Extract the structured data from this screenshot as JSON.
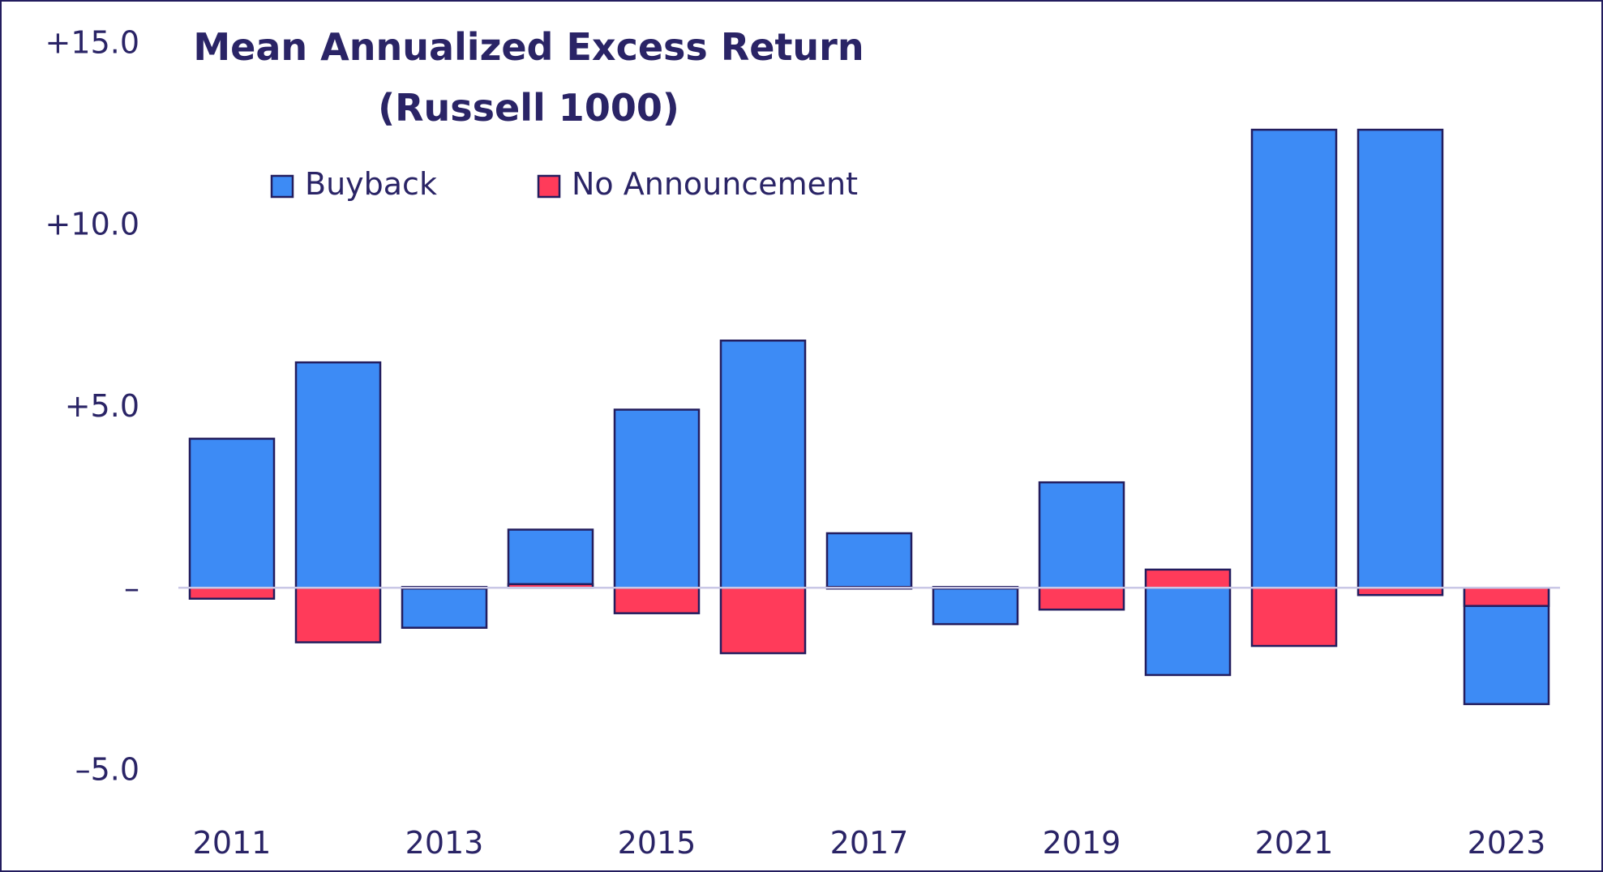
{
  "chart_data": {
    "type": "bar",
    "stacking": "overlapped-per-year",
    "title_line1": "Mean Annualized Excess Return",
    "title_line2": "(Russell 1000)",
    "xlabel": "",
    "ylabel": "",
    "ylim": [
      -5.5,
      15.5
    ],
    "y_ticks": [
      {
        "value": 15,
        "label": "+15.0"
      },
      {
        "value": 10,
        "label": "+10.0"
      },
      {
        "value": 5,
        "label": "+5.0"
      },
      {
        "value": 0,
        "label": "–"
      },
      {
        "value": -5,
        "label": "–5.0"
      }
    ],
    "categories": [
      "2011",
      "2012",
      "2013",
      "2014",
      "2015",
      "2016",
      "2017",
      "2018",
      "2019",
      "2020",
      "2021",
      "2022",
      "2023"
    ],
    "x_tick_labels": [
      "2011",
      "",
      "2013",
      "",
      "2015",
      "",
      "2017",
      "",
      "2019",
      "",
      "2021",
      "",
      "2023"
    ],
    "series": [
      {
        "name": "Buyback",
        "color": "#3d8bf5",
        "values": [
          4.1,
          6.2,
          -1.1,
          1.6,
          4.9,
          6.8,
          1.5,
          -1.0,
          2.9,
          -2.4,
          12.6,
          12.6,
          -3.2
        ]
      },
      {
        "name": "No Announcement",
        "color": "#ff3b5a",
        "values": [
          -0.3,
          -1.5,
          0.0,
          0.1,
          -0.7,
          -1.8,
          0.0,
          0.0,
          -0.6,
          0.5,
          -1.6,
          -0.2,
          -0.5
        ]
      }
    ],
    "legend_position": "top-left",
    "grid": false,
    "edge_color": "#231d5e",
    "zero_line_color": "#c9c7e6"
  }
}
